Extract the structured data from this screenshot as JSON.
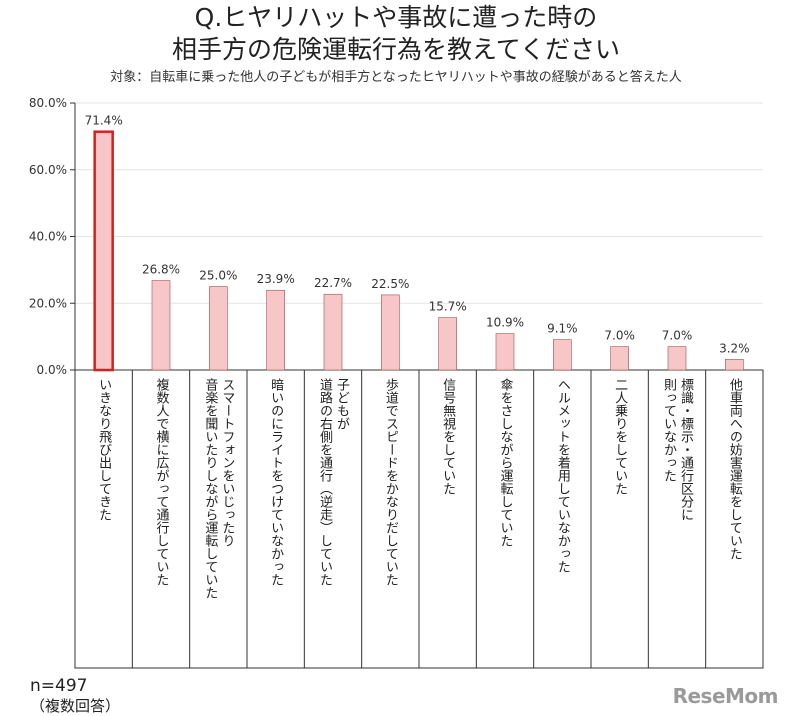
{
  "title_line1": "Q.ヒヤリハットや事故に遭った時の",
  "title_line2": "相手方の危険運転行為を教えてください",
  "subtitle": "対象：自転車に乗った他人の子どもが相手方となったヒヤリハットや事故の経験があると答えた人",
  "sample_size": "n=497",
  "answer_type": "（複数回答）",
  "logo_text": "ReseMom",
  "colors": {
    "bar_fill": "#f7c7c7",
    "bar_stroke": "#a05050",
    "highlight_stroke": "#d62020",
    "axis": "#333333",
    "grid": "#e4e4e4"
  },
  "chart_data": {
    "type": "bar",
    "ylim": [
      0,
      80
    ],
    "yticks": [
      "0.0%",
      "20.0%",
      "40.0%",
      "60.0%",
      "80.0%"
    ],
    "categories": [
      "いきなり飛び出してきた",
      "複数人で横に広がって通行していた",
      "スマートフォンをいじったり音楽を聞いたりしながら運転していた",
      "暗いのにライトをつけていなかった",
      "子どもが道路の右側を通行（逆走）していた",
      "歩道でスピードをかなりだしていた",
      "信号無視をしていた",
      "傘をさしながら運転していた",
      "ヘルメットを着用していなかった",
      "二人乗りをしていた",
      "標識・標示・通行区分に則っていなかった",
      "他車両への妨害運転をしていた"
    ],
    "category_lines": [
      [
        "いきなり飛び出してきた"
      ],
      [
        "複数人で横に広がって通行していた"
      ],
      [
        "スマートフォンをいじったり",
        "音楽を聞いたりしながら運転していた"
      ],
      [
        "暗いのにライトをつけていなかった"
      ],
      [
        "子どもが",
        "道路の右側を通行（逆走）していた"
      ],
      [
        "歩道でスピードをかなりだしていた"
      ],
      [
        "信号無視をしていた"
      ],
      [
        "傘をさしながら運転していた"
      ],
      [
        "ヘルメットを着用していなかった"
      ],
      [
        "二人乗りをしていた"
      ],
      [
        "標識・標示・通行区分に",
        "則っていなかった"
      ],
      [
        "他車両への妨害運転をしていた"
      ]
    ],
    "values": [
      71.4,
      26.8,
      25.0,
      23.9,
      22.7,
      22.5,
      15.7,
      10.9,
      9.1,
      7.0,
      7.0,
      3.2
    ],
    "value_labels": [
      "71.4%",
      "26.8%",
      "25.0%",
      "23.9%",
      "22.7%",
      "22.5%",
      "15.7%",
      "10.9%",
      "9.1%",
      "7.0%",
      "7.0%",
      "3.2%"
    ],
    "highlight_index": 0,
    "grid": true
  }
}
